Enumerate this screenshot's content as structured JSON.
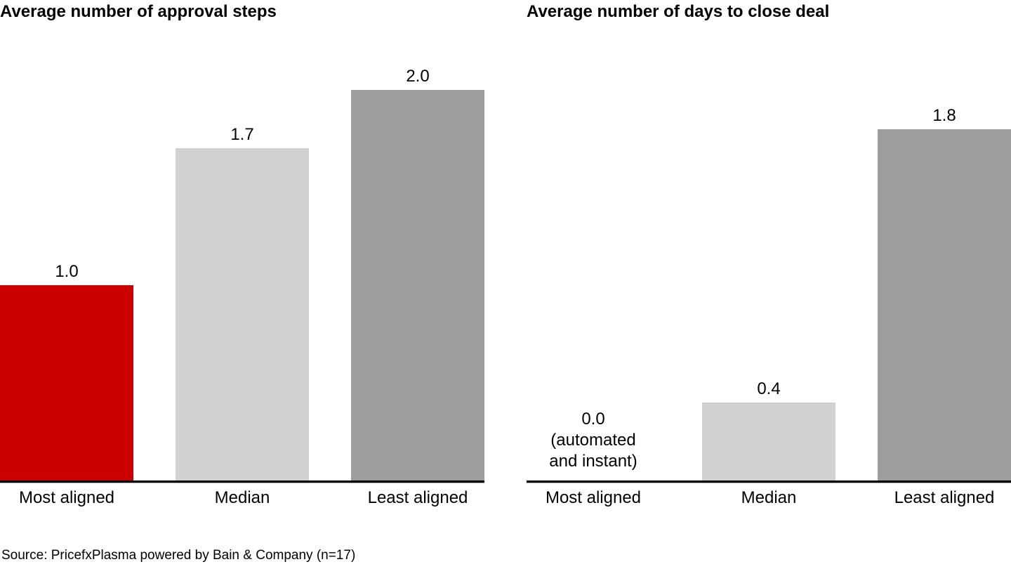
{
  "page": {
    "background": "#ffffff",
    "text_color": "#000000",
    "accent_red": "#cc0000",
    "light_gray": "#d1d1d1",
    "mid_gray": "#9e9e9e",
    "axis_color": "#000000"
  },
  "chart_data": [
    {
      "type": "bar",
      "title": "Average number of approval steps",
      "categories": [
        "Most aligned",
        "Median",
        "Least aligned"
      ],
      "values": [
        1.0,
        1.7,
        2.0
      ],
      "value_labels": [
        "1.0",
        "1.7",
        "2.0"
      ],
      "bar_colors": [
        "#cc0000",
        "#d1d1d1",
        "#9e9e9e"
      ],
      "xlabel": "",
      "ylabel": "",
      "ylim": [
        0,
        2.0
      ],
      "grid": "off",
      "legend": "none",
      "y_axis_visible": false
    },
    {
      "type": "bar",
      "title": "Average number of days to close deal",
      "categories": [
        "Most aligned",
        "Median",
        "Least aligned"
      ],
      "values": [
        0.0,
        0.4,
        1.8
      ],
      "value_labels": [
        "0.0\n(automated\nand instant)",
        "0.4",
        "1.8"
      ],
      "bar_colors": [
        "#cc0000",
        "#d1d1d1",
        "#9e9e9e"
      ],
      "xlabel": "",
      "ylabel": "",
      "ylim": [
        0,
        2.0
      ],
      "grid": "off",
      "legend": "none",
      "y_axis_visible": false
    }
  ],
  "source_note": "Source: PricefxPlasma powered by Bain & Company (n=17)"
}
